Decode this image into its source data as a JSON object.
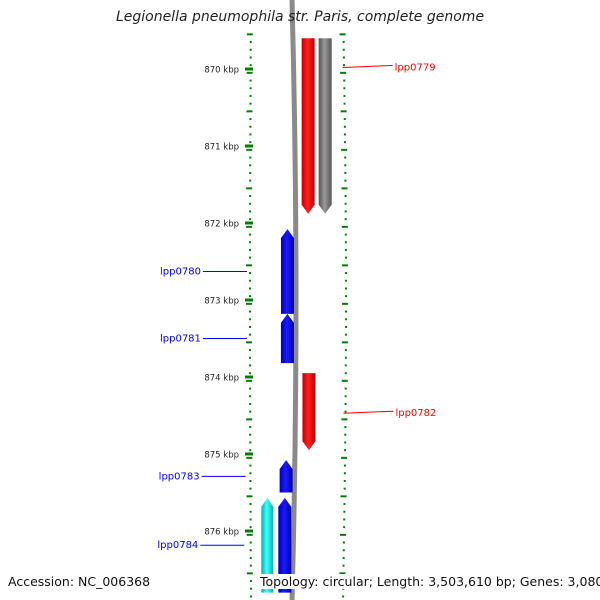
{
  "title": "Legionella pneumophila str. Paris, complete genome",
  "footer": {
    "accession": "Accession: NC_006368",
    "topology": "Topology: circular; Length: 3,503,610 bp; Genes: 3,080"
  },
  "ticks": [
    {
      "label": "870 kbp",
      "kbp": 870
    },
    {
      "label": "871 kbp",
      "kbp": 871
    },
    {
      "label": "872 kbp",
      "kbp": 872
    },
    {
      "label": "873 kbp",
      "kbp": 873
    },
    {
      "label": "874 kbp",
      "kbp": 874
    },
    {
      "label": "875 kbp",
      "kbp": 875
    },
    {
      "label": "876 kbp",
      "kbp": 876
    }
  ],
  "genes": [
    {
      "label": "lpp0779",
      "strand": "+",
      "start_kbp": 869.6,
      "end_kbp": 871.88,
      "color": "#ff0000",
      "labeled": true
    },
    {
      "label": "",
      "strand": "+",
      "start_kbp": 869.6,
      "end_kbp": 871.88,
      "color": "#666666",
      "labeled": false,
      "track": "outer"
    },
    {
      "label": "lpp0780",
      "strand": "-",
      "start_kbp": 872.08,
      "end_kbp": 873.18,
      "color": "#0000ff",
      "labeled": true
    },
    {
      "label": "lpp0781",
      "strand": "-",
      "start_kbp": 873.18,
      "end_kbp": 873.82,
      "color": "#0000ff",
      "labeled": true
    },
    {
      "label": "lpp0782",
      "strand": "+",
      "start_kbp": 873.95,
      "end_kbp": 874.95,
      "color": "#ff0000",
      "labeled": true
    },
    {
      "label": "lpp0783",
      "strand": "-",
      "start_kbp": 875.08,
      "end_kbp": 875.5,
      "color": "#0000ff",
      "labeled": true
    },
    {
      "label": "lpp0784",
      "strand": "-",
      "start_kbp": 875.57,
      "end_kbp": 876.8,
      "color": "#0000ff",
      "labeled": true
    },
    {
      "label": "",
      "strand": "-",
      "start_kbp": 875.57,
      "end_kbp": 876.8,
      "color": "#00ffff",
      "labeled": false,
      "track": "cds"
    }
  ],
  "colors": {
    "forward": "#ff0000",
    "reverse": "#0000ff",
    "backbone": "#808080",
    "tick": "#008000",
    "cds": "#00ffff"
  }
}
